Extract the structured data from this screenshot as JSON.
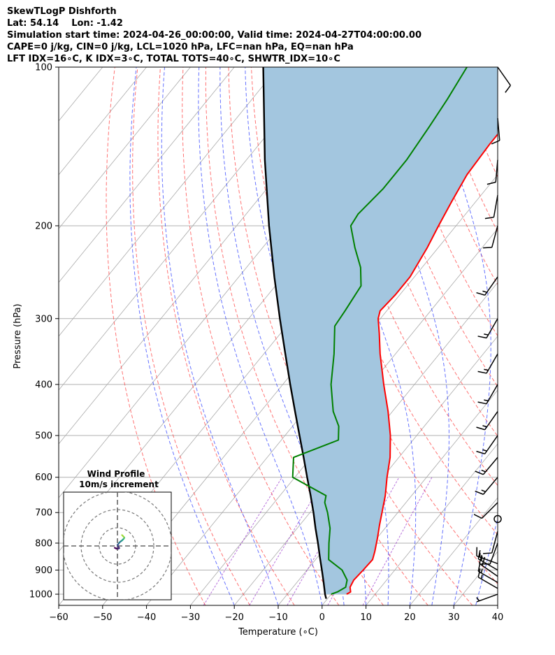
{
  "header": {
    "line1": "SkewTLogP Dishforth",
    "line2": "Lat: 54.14    Lon: -1.42",
    "line3": "Simulation start time: 2024-04-26_00:00:00, Valid time: 2024-04-27T04:00:00.00",
    "line4": "CAPE=0 j/kg, CIN=0 j/kg, LCL=1020 hPa, LFC=nan hPa, EQ=nan hPa",
    "line5": "LFT IDX=16∘C, K IDX=3∘C, TOTAL TOTS=40∘C, SHWTR_IDX=10∘C"
  },
  "colors": {
    "temperature": "#ff0000",
    "dewpoint": "#008000",
    "parcel": "#000000",
    "cape_fill": "#a3c6df",
    "isotherm": "#aaaaaa",
    "dry_adiabat": "#ff4444",
    "moist_adiabat": "#3344ff",
    "mixing_ratio": "#9933cc",
    "isobar": "#b0b0b0"
  },
  "chart_data": {
    "type": "skewt-logp",
    "xlabel": "Temperature (∘C)",
    "ylabel": "Pressure (hPa)",
    "xlim": [
      -60,
      40
    ],
    "ylim": [
      1050,
      100
    ],
    "x_ticks": [
      -60,
      -50,
      -40,
      -30,
      -20,
      -10,
      0,
      10,
      20,
      30,
      40
    ],
    "y_ticks": [
      100,
      200,
      300,
      400,
      500,
      600,
      700,
      800,
      900,
      1000
    ],
    "yscale": "log",
    "grid": true,
    "temperature": [
      {
        "p": 1000,
        "t": 3.5
      },
      {
        "p": 990,
        "t": 4.0
      },
      {
        "p": 970,
        "t": 3.0
      },
      {
        "p": 940,
        "t": 2.5
      },
      {
        "p": 900,
        "t": 2.8
      },
      {
        "p": 860,
        "t": 3.0
      },
      {
        "p": 830,
        "t": 2.0
      },
      {
        "p": 780,
        "t": 0.0
      },
      {
        "p": 740,
        "t": -1.8
      },
      {
        "p": 700,
        "t": -3.6
      },
      {
        "p": 650,
        "t": -6.0
      },
      {
        "p": 600,
        "t": -9.0
      },
      {
        "p": 550,
        "t": -12.0
      },
      {
        "p": 500,
        "t": -16.0
      },
      {
        "p": 450,
        "t": -21.0
      },
      {
        "p": 400,
        "t": -27.0
      },
      {
        "p": 350,
        "t": -33.5
      },
      {
        "p": 320,
        "t": -37.5
      },
      {
        "p": 300,
        "t": -40.5
      },
      {
        "p": 290,
        "t": -41.5
      },
      {
        "p": 270,
        "t": -41.0
      },
      {
        "p": 250,
        "t": -41.0
      },
      {
        "p": 220,
        "t": -42.5
      },
      {
        "p": 200,
        "t": -44.0
      },
      {
        "p": 180,
        "t": -45.5
      },
      {
        "p": 160,
        "t": -47.0
      },
      {
        "p": 140,
        "t": -47.5
      },
      {
        "p": 120,
        "t": -47.5
      },
      {
        "p": 100,
        "t": -48.0
      }
    ],
    "dewpoint": [
      {
        "p": 1000,
        "t": 0.0
      },
      {
        "p": 990,
        "t": 1.0
      },
      {
        "p": 970,
        "t": 2.0
      },
      {
        "p": 940,
        "t": 1.0
      },
      {
        "p": 900,
        "t": -2.0
      },
      {
        "p": 860,
        "t": -7.0
      },
      {
        "p": 800,
        "t": -10.0
      },
      {
        "p": 750,
        "t": -12.5
      },
      {
        "p": 700,
        "t": -16.0
      },
      {
        "p": 670,
        "t": -18.5
      },
      {
        "p": 650,
        "t": -19.5
      },
      {
        "p": 600,
        "t": -30.5
      },
      {
        "p": 550,
        "t": -34.0
      },
      {
        "p": 510,
        "t": -27.0
      },
      {
        "p": 480,
        "t": -29.5
      },
      {
        "p": 450,
        "t": -33.5
      },
      {
        "p": 400,
        "t": -39.0
      },
      {
        "p": 350,
        "t": -44.0
      },
      {
        "p": 310,
        "t": -49.0
      },
      {
        "p": 290,
        "t": -49.5
      },
      {
        "p": 260,
        "t": -50.5
      },
      {
        "p": 240,
        "t": -54.0
      },
      {
        "p": 220,
        "t": -59.0
      },
      {
        "p": 200,
        "t": -64.0
      },
      {
        "p": 190,
        "t": -64.5
      },
      {
        "p": 170,
        "t": -63.5
      },
      {
        "p": 150,
        "t": -63.5
      },
      {
        "p": 130,
        "t": -64.5
      },
      {
        "p": 115,
        "t": -65.5
      },
      {
        "p": 100,
        "t": -67.0
      }
    ],
    "parcel_profile": [
      {
        "p": 1020,
        "t": -0.3
      },
      {
        "p": 1000,
        "t": -1.4
      },
      {
        "p": 950,
        "t": -3.9
      },
      {
        "p": 900,
        "t": -6.6
      },
      {
        "p": 850,
        "t": -9.5
      },
      {
        "p": 800,
        "t": -12.5
      },
      {
        "p": 750,
        "t": -15.8
      },
      {
        "p": 700,
        "t": -19.2
      },
      {
        "p": 650,
        "t": -23.0
      },
      {
        "p": 600,
        "t": -27.2
      },
      {
        "p": 550,
        "t": -31.7
      },
      {
        "p": 500,
        "t": -36.7
      },
      {
        "p": 450,
        "t": -42.2
      },
      {
        "p": 400,
        "t": -48.3
      },
      {
        "p": 350,
        "t": -55.1
      },
      {
        "p": 300,
        "t": -62.9
      },
      {
        "p": 250,
        "t": -71.9
      },
      {
        "p": 200,
        "t": -82.6
      },
      {
        "p": 150,
        "t": -95.8
      },
      {
        "p": 100,
        "t": -113.4
      }
    ],
    "wind_barbs": [
      {
        "p": 1000,
        "dir": 250,
        "speed_kt": 5
      },
      {
        "p": 975,
        "dir": 300,
        "speed_kt": 15
      },
      {
        "p": 950,
        "dir": 300,
        "speed_kt": 15
      },
      {
        "p": 925,
        "dir": 305,
        "speed_kt": 20
      },
      {
        "p": 900,
        "dir": 300,
        "speed_kt": 15
      },
      {
        "p": 875,
        "dir": 290,
        "speed_kt": 15
      },
      {
        "p": 800,
        "dir": 200,
        "speed_kt": 10
      },
      {
        "p": 760,
        "dir": 195,
        "speed_kt": 10
      },
      {
        "p": 720,
        "dir": 0,
        "speed_kt": 0
      },
      {
        "p": 670,
        "dir": 225,
        "speed_kt": 10
      },
      {
        "p": 600,
        "dir": 220,
        "speed_kt": 15
      },
      {
        "p": 550,
        "dir": 220,
        "speed_kt": 15
      },
      {
        "p": 500,
        "dir": 215,
        "speed_kt": 15
      },
      {
        "p": 450,
        "dir": 215,
        "speed_kt": 15
      },
      {
        "p": 400,
        "dir": 210,
        "speed_kt": 15
      },
      {
        "p": 350,
        "dir": 210,
        "speed_kt": 15
      },
      {
        "p": 300,
        "dir": 210,
        "speed_kt": 15
      },
      {
        "p": 250,
        "dir": 215,
        "speed_kt": 15
      },
      {
        "p": 200,
        "dir": 195,
        "speed_kt": 10
      },
      {
        "p": 175,
        "dir": 190,
        "speed_kt": 10
      },
      {
        "p": 150,
        "dir": 185,
        "speed_kt": 10
      },
      {
        "p": 125,
        "dir": 175,
        "speed_kt": 10
      },
      {
        "p": 100,
        "dir": 145,
        "speed_kt": 10
      }
    ],
    "hodograph": {
      "title": "Wind Profile",
      "subtitle": "10m/s increment",
      "rings_ms": [
        10,
        20,
        30
      ],
      "points_uv": [
        [
          -1.5,
          -1.0
        ],
        [
          -0.5,
          -1.5
        ],
        [
          0.5,
          -1.5
        ],
        [
          1.0,
          -1.2
        ],
        [
          0.0,
          0.5
        ],
        [
          0.5,
          1.0
        ],
        [
          1.0,
          1.8
        ],
        [
          1.8,
          2.5
        ],
        [
          2.5,
          3.0
        ],
        [
          3.0,
          3.5
        ],
        [
          3.5,
          4.0
        ],
        [
          3.8,
          4.5
        ],
        [
          3.5,
          5.0
        ],
        [
          3.0,
          5.5
        ],
        [
          2.5,
          6.0
        ]
      ]
    }
  }
}
